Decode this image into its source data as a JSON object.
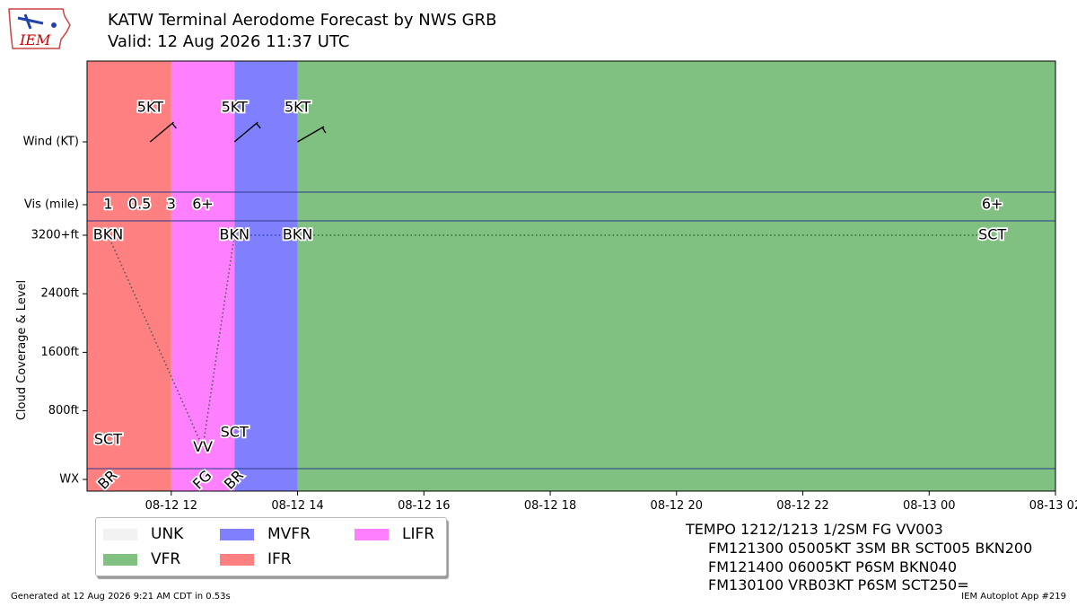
{
  "header": {
    "logo_text": "IEM",
    "title": "KATW Terminal Aerodome Forecast by NWS GRB",
    "valid": "Valid: 12 Aug 2026 11:37 UTC"
  },
  "colors": {
    "VFR": "#80c080",
    "MVFR": "#8080ff",
    "IFR": "#ff8080",
    "LIFR": "#ff80ff",
    "UNK": "#f2f2f2"
  },
  "legend": [
    {
      "key": "UNK",
      "label": "UNK"
    },
    {
      "key": "VFR",
      "label": "VFR"
    },
    {
      "key": "MVFR",
      "label": "MVFR"
    },
    {
      "key": "IFR",
      "label": "IFR"
    },
    {
      "key": "LIFR",
      "label": "LIFR"
    }
  ],
  "taf_text": [
    "TEMPO 1212/1213 1/2SM FG VV003",
    "FM121300 05005KT 3SM BR SCT005 BKN200",
    "FM121400 06005KT P6SM BKN040",
    "FM130100 VRB03KT P6SM SCT250="
  ],
  "footer": {
    "left": "Generated at 12 Aug 2026 9:21 AM CDT in 0.53s",
    "right": "IEM Autoplot App #219"
  },
  "chart_data": {
    "type": "timeline",
    "xlim": [
      "08-12 10:40",
      "08-13 02:00"
    ],
    "x_ticks": [
      "08-12 12",
      "08-12 14",
      "08-12 16",
      "08-12 18",
      "08-12 20",
      "08-12 22",
      "08-13 00",
      "08-13 02"
    ],
    "y_ticks": [
      "Wind (KT)",
      "Vis (mile)",
      "3200+ft",
      "2400ft",
      "1600ft",
      "800ft",
      "WX"
    ],
    "ylabel": "Cloud Coverage & Level",
    "category_bands": [
      {
        "start": "08-12 10:40",
        "end": "08-12 12:00",
        "category": "IFR"
      },
      {
        "start": "08-12 12:00",
        "end": "08-12 13:00",
        "category": "LIFR"
      },
      {
        "start": "08-12 13:00",
        "end": "08-12 14:00",
        "category": "MVFR"
      },
      {
        "start": "08-12 14:00",
        "end": "08-13 02:00",
        "category": "VFR"
      }
    ],
    "wind": [
      {
        "time": "08-12 11:40",
        "dir_deg": 50,
        "speed_label": "5KT"
      },
      {
        "time": "08-12 13:00",
        "dir_deg": 50,
        "speed_label": "5KT"
      },
      {
        "time": "08-12 14:00",
        "dir_deg": 60,
        "speed_label": "5KT"
      }
    ],
    "visibility": [
      {
        "time": "08-12 11:00",
        "label": "1"
      },
      {
        "time": "08-12 11:30",
        "label": "0.5"
      },
      {
        "time": "08-12 12:00",
        "label": "3"
      },
      {
        "time": "08-12 12:30",
        "label": "6+"
      },
      {
        "time": "08-13 01:00",
        "label": "6+"
      }
    ],
    "cloud_layers": [
      {
        "time": "08-12 11:00",
        "coverage": "BKN",
        "level_ft": 3200
      },
      {
        "time": "08-12 11:00",
        "coverage": "SCT",
        "level_ft": 400
      },
      {
        "time": "08-12 12:30",
        "coverage": "VV",
        "level_ft": 300
      },
      {
        "time": "08-12 13:00",
        "coverage": "SCT",
        "level_ft": 500
      },
      {
        "time": "08-12 13:00",
        "coverage": "BKN",
        "level_ft": 3200
      },
      {
        "time": "08-12 14:00",
        "coverage": "BKN",
        "level_ft": 3200
      },
      {
        "time": "08-13 01:00",
        "coverage": "SCT",
        "level_ft": 3200
      }
    ],
    "cloud_lines": [
      {
        "color": "#555555",
        "points": [
          [
            "08-12 11:00",
            3200
          ],
          [
            "08-12 12:30",
            300
          ],
          [
            "08-12 13:00",
            3200
          ]
        ]
      },
      {
        "color": "#2244aa",
        "points": [
          [
            "08-12 13:00",
            3200
          ],
          [
            "08-12 14:00",
            3200
          ]
        ]
      },
      {
        "color": "#2b6a2b",
        "points": [
          [
            "08-12 14:00",
            3200
          ],
          [
            "08-13 01:00",
            3200
          ]
        ]
      }
    ],
    "weather": [
      {
        "time": "08-12 11:00",
        "label": "BR"
      },
      {
        "time": "08-12 12:30",
        "label": "FG"
      },
      {
        "time": "08-12 13:00",
        "label": "BR"
      }
    ]
  }
}
